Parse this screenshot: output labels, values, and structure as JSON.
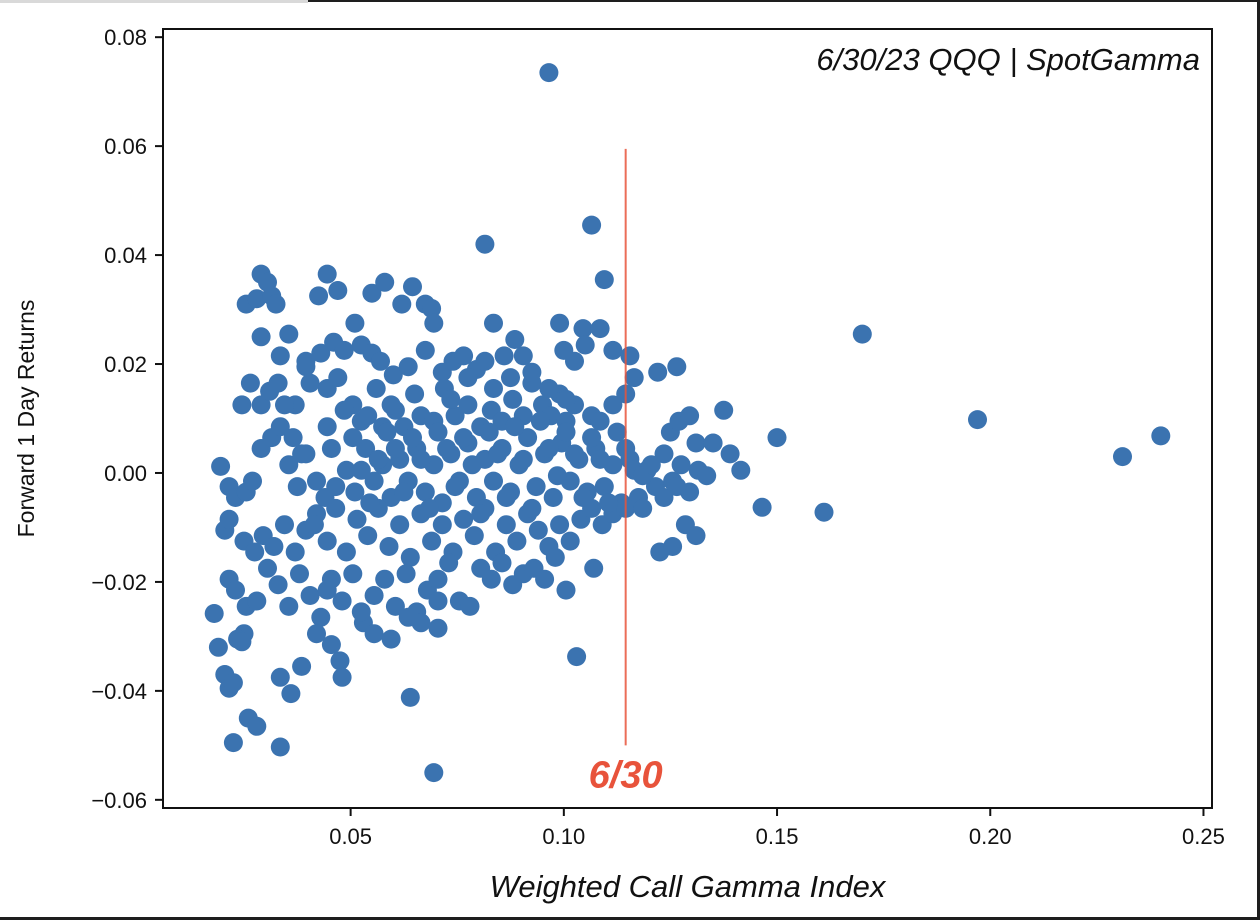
{
  "chart_data": {
    "type": "scatter",
    "title": "",
    "annotation": "6/30/23 QQQ | SpotGamma",
    "xlabel": "Weighted Call Gamma Index",
    "ylabel": "Forward 1 Day Returns",
    "xlim": [
      0.006,
      0.252
    ],
    "ylim": [
      -0.0615,
      0.0815
    ],
    "xticks": [
      0.05,
      0.1,
      0.15,
      0.2,
      0.25
    ],
    "xtick_labels": [
      "0.05",
      "0.10",
      "0.15",
      "0.20",
      "0.25"
    ],
    "yticks": [
      -0.06,
      -0.04,
      -0.02,
      0.0,
      0.02,
      0.04,
      0.06,
      0.08
    ],
    "ytick_labels": [
      "−0.06",
      "−0.04",
      "−0.02",
      "0.00",
      "0.02",
      "0.04",
      "0.06",
      "0.08"
    ],
    "grid": false,
    "point_color": "#3b73b0",
    "vline": {
      "x": 0.1145,
      "y_range": [
        -0.05,
        0.0595
      ],
      "label": "6/30",
      "color": "#e8533b"
    },
    "points": [
      [
        0.0965,
        0.0735
      ],
      [
        0.1065,
        0.0455
      ],
      [
        0.0815,
        0.042
      ],
      [
        0.1095,
        0.0355
      ],
      [
        0.17,
        0.0255
      ],
      [
        0.197,
        0.0098
      ],
      [
        0.24,
        0.0068
      ],
      [
        0.231,
        0.003
      ],
      [
        0.15,
        0.0065
      ],
      [
        0.161,
        -0.0072
      ],
      [
        0.1465,
        -0.0063
      ],
      [
        0.103,
        -0.0337
      ],
      [
        0.0695,
        -0.055
      ],
      [
        0.064,
        -0.0412
      ],
      [
        0.0335,
        -0.0503
      ],
      [
        0.0225,
        -0.0495
      ],
      [
        0.026,
        -0.045
      ],
      [
        0.028,
        -0.0465
      ],
      [
        0.018,
        -0.0258
      ],
      [
        0.019,
        -0.032
      ],
      [
        0.0205,
        -0.037
      ],
      [
        0.0215,
        -0.0395
      ],
      [
        0.0225,
        -0.0385
      ],
      [
        0.0215,
        -0.0195
      ],
      [
        0.025,
        -0.0295
      ],
      [
        0.0235,
        -0.0305
      ],
      [
        0.0245,
        -0.031
      ],
      [
        0.029,
        0.0365
      ],
      [
        0.0305,
        0.035
      ],
      [
        0.0255,
        0.031
      ],
      [
        0.028,
        0.032
      ],
      [
        0.0315,
        0.0325
      ],
      [
        0.0325,
        0.031
      ],
      [
        0.0445,
        0.0365
      ],
      [
        0.0425,
        0.0325
      ],
      [
        0.047,
        0.0335
      ],
      [
        0.055,
        0.033
      ],
      [
        0.058,
        0.035
      ],
      [
        0.062,
        0.031
      ],
      [
        0.0645,
        0.0342
      ],
      [
        0.0675,
        0.031
      ],
      [
        0.069,
        0.0302
      ],
      [
        0.0695,
        0.0275
      ],
      [
        0.029,
        0.025
      ],
      [
        0.0335,
        0.0215
      ],
      [
        0.0355,
        0.0255
      ],
      [
        0.0395,
        0.0205
      ],
      [
        0.043,
        0.022
      ],
      [
        0.046,
        0.024
      ],
      [
        0.0485,
        0.0225
      ],
      [
        0.051,
        0.0275
      ],
      [
        0.0525,
        0.0235
      ],
      [
        0.055,
        0.022
      ],
      [
        0.057,
        0.0205
      ],
      [
        0.06,
        0.018
      ],
      [
        0.0675,
        0.0225
      ],
      [
        0.0715,
        0.0185
      ],
      [
        0.074,
        0.0205
      ],
      [
        0.0765,
        0.0215
      ],
      [
        0.0795,
        0.019
      ],
      [
        0.0815,
        0.0205
      ],
      [
        0.0835,
        0.0275
      ],
      [
        0.086,
        0.0215
      ],
      [
        0.0885,
        0.0245
      ],
      [
        0.0905,
        0.0215
      ],
      [
        0.099,
        0.0275
      ],
      [
        0.1,
        0.0225
      ],
      [
        0.1025,
        0.0205
      ],
      [
        0.1045,
        0.0265
      ],
      [
        0.105,
        0.0235
      ],
      [
        0.1085,
        0.0265
      ],
      [
        0.1115,
        0.0225
      ],
      [
        0.1155,
        0.0215
      ],
      [
        0.122,
        0.0185
      ],
      [
        0.1265,
        0.0195
      ],
      [
        0.1375,
        0.0115
      ],
      [
        0.0245,
        0.0125
      ],
      [
        0.0265,
        0.0165
      ],
      [
        0.029,
        0.0125
      ],
      [
        0.031,
        0.015
      ],
      [
        0.033,
        0.0165
      ],
      [
        0.037,
        0.0125
      ],
      [
        0.0405,
        0.0165
      ],
      [
        0.0445,
        0.0155
      ],
      [
        0.047,
        0.0175
      ],
      [
        0.0505,
        0.0125
      ],
      [
        0.0525,
        0.0095
      ],
      [
        0.054,
        0.0105
      ],
      [
        0.056,
        0.0155
      ],
      [
        0.0575,
        0.0085
      ],
      [
        0.0605,
        0.0115
      ],
      [
        0.0625,
        0.0085
      ],
      [
        0.065,
        0.0145
      ],
      [
        0.0665,
        0.0105
      ],
      [
        0.0695,
        0.0095
      ],
      [
        0.072,
        0.0155
      ],
      [
        0.0745,
        0.0105
      ],
      [
        0.0775,
        0.0125
      ],
      [
        0.0805,
        0.0085
      ],
      [
        0.083,
        0.0115
      ],
      [
        0.0855,
        0.0095
      ],
      [
        0.088,
        0.0135
      ],
      [
        0.0905,
        0.0105
      ],
      [
        0.0925,
        0.0165
      ],
      [
        0.095,
        0.0125
      ],
      [
        0.097,
        0.0105
      ],
      [
        0.099,
        0.0145
      ],
      [
        0.1005,
        0.0095
      ],
      [
        0.1025,
        0.0125
      ],
      [
        0.1065,
        0.0105
      ],
      [
        0.1085,
        0.0095
      ],
      [
        0.1115,
        0.0125
      ],
      [
        0.1145,
        0.0145
      ],
      [
        0.1165,
        0.0175
      ],
      [
        0.125,
        0.0075
      ],
      [
        0.127,
        0.0095
      ],
      [
        0.1295,
        0.0105
      ],
      [
        0.131,
        0.0055
      ],
      [
        0.135,
        0.0055
      ],
      [
        0.139,
        0.0035
      ],
      [
        0.1415,
        0.0005
      ],
      [
        0.0195,
        0.0012
      ],
      [
        0.0215,
        -0.0025
      ],
      [
        0.023,
        -0.0045
      ],
      [
        0.0255,
        -0.0035
      ],
      [
        0.027,
        -0.0015
      ],
      [
        0.029,
        0.0045
      ],
      [
        0.0315,
        0.0065
      ],
      [
        0.0335,
        0.0085
      ],
      [
        0.0355,
        0.0015
      ],
      [
        0.0375,
        -0.0025
      ],
      [
        0.0395,
        0.0035
      ],
      [
        0.042,
        -0.0015
      ],
      [
        0.044,
        -0.0045
      ],
      [
        0.0465,
        -0.0025
      ],
      [
        0.049,
        0.0005
      ],
      [
        0.051,
        -0.0035
      ],
      [
        0.0535,
        0.0045
      ],
      [
        0.0555,
        -0.0015
      ],
      [
        0.0575,
        0.0015
      ],
      [
        0.0595,
        -0.0045
      ],
      [
        0.0615,
        0.0025
      ],
      [
        0.0635,
        -0.0015
      ],
      [
        0.0655,
        0.0045
      ],
      [
        0.0675,
        -0.0035
      ],
      [
        0.0695,
        0.0015
      ],
      [
        0.0715,
        -0.0055
      ],
      [
        0.0735,
        0.0035
      ],
      [
        0.0755,
        -0.0015
      ],
      [
        0.0775,
        0.0055
      ],
      [
        0.0795,
        -0.0045
      ],
      [
        0.0815,
        0.0025
      ],
      [
        0.0835,
        -0.0015
      ],
      [
        0.0855,
        0.0045
      ],
      [
        0.0875,
        -0.0035
      ],
      [
        0.0895,
        0.0015
      ],
      [
        0.0915,
        0.0065
      ],
      [
        0.0935,
        -0.0025
      ],
      [
        0.0955,
        0.0035
      ],
      [
        0.0975,
        -0.0045
      ],
      [
        0.0995,
        0.0055
      ],
      [
        0.1015,
        -0.0015
      ],
      [
        0.1035,
        0.0025
      ],
      [
        0.1055,
        -0.0035
      ],
      [
        0.1075,
        0.0045
      ],
      [
        0.1095,
        -0.0025
      ],
      [
        0.1115,
        0.0015
      ],
      [
        0.1135,
        -0.0055
      ],
      [
        0.1155,
        0.0025
      ],
      [
        0.1175,
        -0.0045
      ],
      [
        0.1195,
        0.0005
      ],
      [
        0.1215,
        -0.0025
      ],
      [
        0.1235,
        0.0035
      ],
      [
        0.1255,
        -0.0015
      ],
      [
        0.1275,
        0.0015
      ],
      [
        0.1295,
        -0.0035
      ],
      [
        0.1315,
        0.0005
      ],
      [
        0.1335,
        -0.0005
      ],
      [
        0.0205,
        -0.0105
      ],
      [
        0.0215,
        -0.0085
      ],
      [
        0.025,
        -0.0125
      ],
      [
        0.0275,
        -0.0145
      ],
      [
        0.0295,
        -0.0115
      ],
      [
        0.032,
        -0.0135
      ],
      [
        0.0345,
        -0.0095
      ],
      [
        0.037,
        -0.0145
      ],
      [
        0.0395,
        -0.0105
      ],
      [
        0.042,
        -0.0075
      ],
      [
        0.0445,
        -0.0125
      ],
      [
        0.0465,
        -0.0065
      ],
      [
        0.049,
        -0.0145
      ],
      [
        0.0515,
        -0.0085
      ],
      [
        0.054,
        -0.0115
      ],
      [
        0.0565,
        -0.0065
      ],
      [
        0.059,
        -0.0135
      ],
      [
        0.0615,
        -0.0095
      ],
      [
        0.064,
        -0.0155
      ],
      [
        0.0665,
        -0.0075
      ],
      [
        0.069,
        -0.0125
      ],
      [
        0.0715,
        -0.0095
      ],
      [
        0.074,
        -0.0145
      ],
      [
        0.0765,
        -0.0085
      ],
      [
        0.079,
        -0.0115
      ],
      [
        0.0815,
        -0.0065
      ],
      [
        0.084,
        -0.0145
      ],
      [
        0.0865,
        -0.0095
      ],
      [
        0.089,
        -0.0125
      ],
      [
        0.0915,
        -0.0075
      ],
      [
        0.094,
        -0.0105
      ],
      [
        0.0965,
        -0.0135
      ],
      [
        0.099,
        -0.0095
      ],
      [
        0.1015,
        -0.0125
      ],
      [
        0.104,
        -0.0085
      ],
      [
        0.1065,
        -0.0065
      ],
      [
        0.109,
        -0.0095
      ],
      [
        0.1115,
        -0.0075
      ],
      [
        0.1145,
        -0.0065
      ],
      [
        0.1185,
        -0.0065
      ],
      [
        0.1225,
        -0.0145
      ],
      [
        0.1255,
        -0.0135
      ],
      [
        0.1285,
        -0.0095
      ],
      [
        0.131,
        -0.0115
      ],
      [
        0.023,
        -0.0215
      ],
      [
        0.0255,
        -0.0245
      ],
      [
        0.028,
        -0.0235
      ],
      [
        0.0305,
        -0.0175
      ],
      [
        0.033,
        -0.0205
      ],
      [
        0.0355,
        -0.0245
      ],
      [
        0.038,
        -0.0185
      ],
      [
        0.0405,
        -0.0225
      ],
      [
        0.043,
        -0.0265
      ],
      [
        0.0455,
        -0.0195
      ],
      [
        0.048,
        -0.0235
      ],
      [
        0.0505,
        -0.0185
      ],
      [
        0.053,
        -0.0275
      ],
      [
        0.0555,
        -0.0225
      ],
      [
        0.058,
        -0.0195
      ],
      [
        0.0605,
        -0.0245
      ],
      [
        0.063,
        -0.0185
      ],
      [
        0.0655,
        -0.0255
      ],
      [
        0.068,
        -0.0215
      ],
      [
        0.0705,
        -0.0195
      ],
      [
        0.073,
        -0.0165
      ],
      [
        0.0755,
        -0.0235
      ],
      [
        0.078,
        -0.0245
      ],
      [
        0.0805,
        -0.0175
      ],
      [
        0.083,
        -0.0195
      ],
      [
        0.0855,
        -0.0165
      ],
      [
        0.088,
        -0.0205
      ],
      [
        0.0905,
        -0.0185
      ],
      [
        0.093,
        -0.0175
      ],
      [
        0.0955,
        -0.0195
      ],
      [
        0.098,
        -0.0155
      ],
      [
        0.1005,
        -0.0215
      ],
      [
        0.107,
        -0.0175
      ],
      [
        0.0335,
        -0.0375
      ],
      [
        0.036,
        -0.0405
      ],
      [
        0.0385,
        -0.0355
      ],
      [
        0.042,
        -0.0295
      ],
      [
        0.0455,
        -0.0315
      ],
      [
        0.0475,
        -0.0345
      ],
      [
        0.048,
        -0.0375
      ],
      [
        0.0525,
        -0.0255
      ],
      [
        0.0555,
        -0.0295
      ],
      [
        0.0595,
        -0.0305
      ],
      [
        0.0635,
        -0.0265
      ],
      [
        0.0665,
        -0.0275
      ],
      [
        0.0705,
        -0.0285
      ],
      [
        0.0705,
        -0.0235
      ],
      [
        0.0445,
        -0.0215
      ],
      [
        0.0415,
        -0.0095
      ],
      [
        0.0385,
        0.0035
      ],
      [
        0.0365,
        0.0065
      ],
      [
        0.0345,
        0.0125
      ],
      [
        0.0395,
        0.0195
      ],
      [
        0.0445,
        0.0085
      ],
      [
        0.0455,
        0.0045
      ],
      [
        0.0485,
        0.0115
      ],
      [
        0.0505,
        0.0065
      ],
      [
        0.0525,
        0.0005
      ],
      [
        0.0545,
        -0.0055
      ],
      [
        0.0565,
        0.0025
      ],
      [
        0.0585,
        0.0075
      ],
      [
        0.0605,
        0.0045
      ],
      [
        0.0625,
        -0.0035
      ],
      [
        0.0645,
        0.0065
      ],
      [
        0.0665,
        0.0025
      ],
      [
        0.0685,
        -0.0065
      ],
      [
        0.0705,
        0.0075
      ],
      [
        0.0725,
        0.0045
      ],
      [
        0.0745,
        -0.0025
      ],
      [
        0.0765,
        0.0065
      ],
      [
        0.0785,
        0.0015
      ],
      [
        0.0805,
        -0.0075
      ],
      [
        0.0825,
        0.0075
      ],
      [
        0.0845,
        0.0035
      ],
      [
        0.0865,
        -0.0045
      ],
      [
        0.0885,
        0.0085
      ],
      [
        0.0905,
        0.0025
      ],
      [
        0.0925,
        -0.0065
      ],
      [
        0.0945,
        0.0095
      ],
      [
        0.0965,
        0.0045
      ],
      [
        0.0985,
        -0.0005
      ],
      [
        0.1005,
        0.0075
      ],
      [
        0.1025,
        0.0035
      ],
      [
        0.1045,
        -0.0045
      ],
      [
        0.1065,
        0.0065
      ],
      [
        0.1085,
        0.0025
      ],
      [
        0.1105,
        -0.0055
      ],
      [
        0.1125,
        0.0075
      ],
      [
        0.1145,
        0.0045
      ],
      [
        0.1165,
        0.0005
      ],
      [
        0.1185,
        -0.0005
      ],
      [
        0.1205,
        0.0015
      ],
      [
        0.1235,
        -0.0045
      ],
      [
        0.1265,
        -0.0025
      ],
      [
        0.0875,
        0.0175
      ],
      [
        0.0925,
        0.0185
      ],
      [
        0.0965,
        0.0155
      ],
      [
        0.1005,
        0.0135
      ],
      [
        0.0835,
        0.0155
      ],
      [
        0.0775,
        0.0175
      ],
      [
        0.0735,
        0.0135
      ],
      [
        0.0635,
        0.0195
      ],
      [
        0.0595,
        0.0125
      ]
    ]
  }
}
